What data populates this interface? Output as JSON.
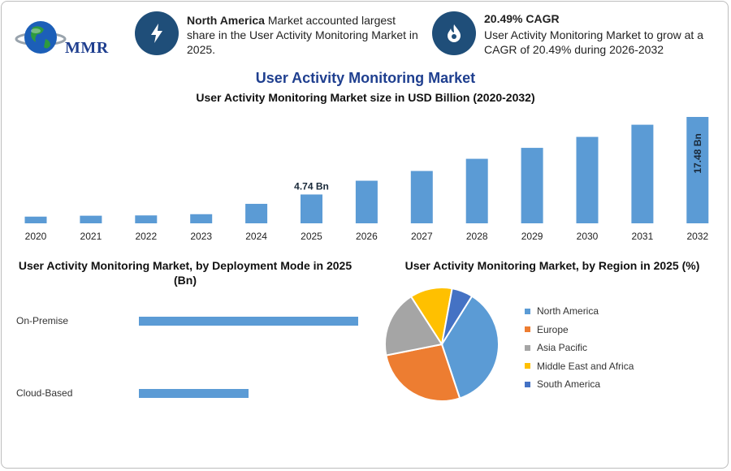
{
  "brand": {
    "logo_text": "MMR"
  },
  "highlights": [
    {
      "icon": "lightning-icon",
      "bold": "North America",
      "text": " Market accounted largest share in the User Activity Monitoring Market in 2025."
    },
    {
      "icon": "flame-icon",
      "bold": "20.49% CAGR",
      "text": "User Activity Monitoring Market to grow at a CAGR of 20.49% during 2026-2032"
    }
  ],
  "title": "User Activity Monitoring Market",
  "subtitle": "User Activity Monitoring Market size in USD Billion (2020-2032)",
  "colors": {
    "bar": "#5b9bd5",
    "title": "#1f3f8f",
    "icon_bg": "#1f4e79"
  },
  "chart_data": [
    {
      "type": "bar",
      "categories": [
        "2020",
        "2021",
        "2022",
        "2023",
        "2024",
        "2025",
        "2026",
        "2027",
        "2028",
        "2029",
        "2030",
        "2031",
        "2032"
      ],
      "values": [
        1.1,
        1.25,
        1.3,
        1.5,
        3.2,
        4.74,
        7.0,
        8.6,
        10.6,
        12.4,
        14.2,
        16.2,
        17.48
      ],
      "data_labels": {
        "2025": "4.74 Bn",
        "2032": "17.48 Bn"
      },
      "ylim": [
        0,
        17.48
      ]
    },
    {
      "type": "bar",
      "orientation": "horizontal",
      "title": "User Activity Monitoring Market, by Deployment Mode in 2025 (Bn)",
      "categories": [
        "On-Premise",
        "Cloud-Based"
      ],
      "values": [
        3.0,
        1.5
      ]
    },
    {
      "type": "pie",
      "title": "User Activity Monitoring Market, by Region in 2025 (%)",
      "labels": [
        "North America",
        "Europe",
        "Asia Pacific",
        "Middle East and Africa",
        "South America"
      ],
      "values": [
        36,
        27,
        19,
        12,
        6
      ],
      "colors": [
        "#5b9bd5",
        "#ed7d31",
        "#a5a5a5",
        "#ffc000",
        "#4472c4"
      ]
    }
  ]
}
